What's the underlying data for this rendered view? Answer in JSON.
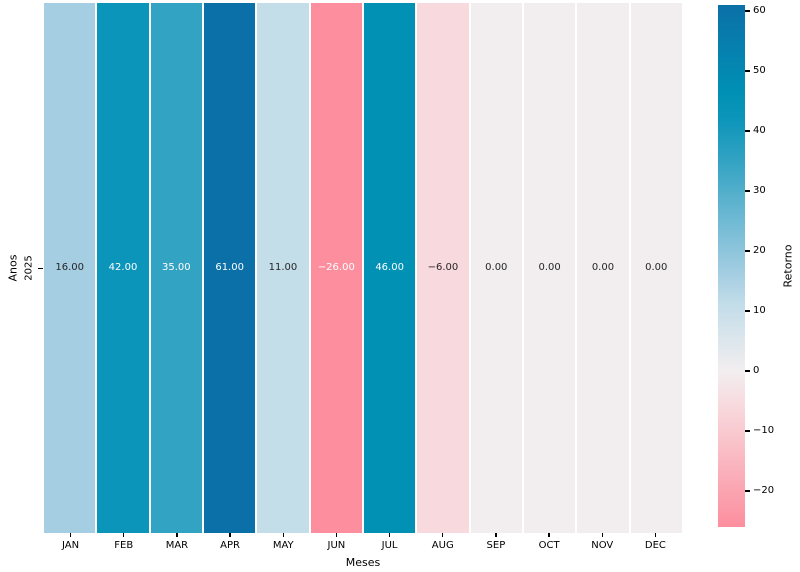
{
  "figure": {
    "background": "#ffffff",
    "grid_line_color": "#ffffff",
    "text_color": "#000000"
  },
  "chart_data": {
    "type": "heatmap",
    "title": "",
    "xlabel": "Meses",
    "ylabel": "Anos",
    "colorbar_label": "Retorno",
    "rows": [
      "2025"
    ],
    "columns": [
      "JAN",
      "FEB",
      "MAR",
      "APR",
      "MAY",
      "JUN",
      "JUL",
      "AUG",
      "SEP",
      "OCT",
      "NOV",
      "DEC"
    ],
    "values": [
      [
        16.0,
        42.0,
        35.0,
        61.0,
        11.0,
        -26.0,
        46.0,
        -6.0,
        0.0,
        0.0,
        0.0,
        0.0
      ]
    ],
    "value_decimals": 2,
    "vmin": -26,
    "vmax": 61,
    "colorbar_ticks": [
      60,
      50,
      40,
      30,
      20,
      10,
      0,
      -10,
      -20
    ],
    "legend_position": "right-colorbar",
    "grid": false,
    "cell_colors": [
      [
        "#a5cee2",
        "#0c95ba",
        "#33a3c3",
        "#0b70a8",
        "#c3dde9",
        "#fc8e9e",
        "#0091b5",
        "#f8d9dd",
        "#f2eef0",
        "#f2eef0",
        "#f2eef0",
        "#f2eef0"
      ]
    ],
    "cell_text_colors": [
      [
        "#262626",
        "#ffffff",
        "#ffffff",
        "#ffffff",
        "#262626",
        "#ffffff",
        "#ffffff",
        "#262626",
        "#262626",
        "#262626",
        "#262626",
        "#262626"
      ]
    ],
    "colormap_stops": [
      {
        "value": 61,
        "color": "#0b70a8"
      },
      {
        "value": 46,
        "color": "#0091b5"
      },
      {
        "value": 42,
        "color": "#0c95ba"
      },
      {
        "value": 35,
        "color": "#33a3c3"
      },
      {
        "value": 16,
        "color": "#a5cee2"
      },
      {
        "value": 11,
        "color": "#c3dde9"
      },
      {
        "value": 0,
        "color": "#f2eef0"
      },
      {
        "value": -6,
        "color": "#f8d9dd"
      },
      {
        "value": -26,
        "color": "#fc8e9e"
      }
    ]
  }
}
